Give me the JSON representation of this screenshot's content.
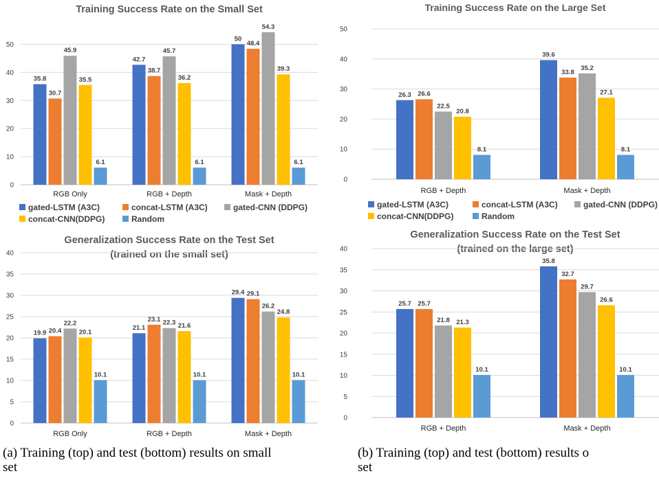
{
  "colors": {
    "gated-LSTM (A3C)": "#4472C4",
    "concat-LSTM (A3C)": "#ED7D31",
    "gated-CNN (DDPG)": "#A5A5A5",
    "concat-CNN(DDPG)": "#FFC000",
    "Random": "#5B9BD5"
  },
  "legend": {
    "items": [
      "gated-LSTM (A3C)",
      "concat-LSTM (A3C)",
      "gated-CNN (DDPG)",
      "concat-CNN(DDPG)",
      "Random"
    ]
  },
  "chart_data": [
    {
      "id": "small-train",
      "type": "bar",
      "title": [
        "Training Success Rate on the Small Set"
      ],
      "categories": [
        "RGB Only",
        "RGB + Depth",
        "Mask + Depth"
      ],
      "series": [
        {
          "name": "gated-LSTM (A3C)",
          "values": [
            35.8,
            42.7,
            50
          ]
        },
        {
          "name": "concat-LSTM (A3C)",
          "values": [
            30.7,
            38.7,
            48.4
          ]
        },
        {
          "name": "gated-CNN (DDPG)",
          "values": [
            45.9,
            45.7,
            54.3
          ]
        },
        {
          "name": "concat-CNN(DDPG)",
          "values": [
            35.5,
            36.2,
            39.3
          ]
        },
        {
          "name": "Random",
          "values": [
            6.1,
            6.1,
            6.1
          ]
        }
      ],
      "ylim": [
        0,
        55
      ],
      "yticks": [
        0,
        10,
        20,
        30,
        40,
        50
      ],
      "grid": true
    },
    {
      "id": "large-train",
      "type": "bar",
      "title": [
        "Training Success Rate on the Large Set"
      ],
      "categories": [
        "RGB + Depth",
        "Mask + Depth"
      ],
      "series": [
        {
          "name": "gated-LSTM (A3C)",
          "values": [
            26.3,
            39.6
          ]
        },
        {
          "name": "concat-LSTM (A3C)",
          "values": [
            26.6,
            33.8
          ]
        },
        {
          "name": "gated-CNN (DDPG)",
          "values": [
            22.5,
            35.2
          ]
        },
        {
          "name": "concat-CNN(DDPG)",
          "values": [
            20.8,
            27.1
          ]
        },
        {
          "name": "Random",
          "values": [
            8.1,
            8.1
          ]
        }
      ],
      "ylim": [
        0,
        50
      ],
      "yticks": [
        0,
        10,
        20,
        30,
        40,
        50
      ],
      "grid": true
    },
    {
      "id": "small-test",
      "type": "bar",
      "title": [
        "Generalization Success Rate on the Test Set",
        "(trained on the small set)"
      ],
      "categories": [
        "RGB Only",
        "RGB + Depth",
        "Mask + Depth"
      ],
      "series": [
        {
          "name": "gated-LSTM (A3C)",
          "values": [
            19.9,
            21.1,
            29.4
          ]
        },
        {
          "name": "concat-LSTM (A3C)",
          "values": [
            20.4,
            23.1,
            29.1
          ]
        },
        {
          "name": "gated-CNN (DDPG)",
          "values": [
            22.2,
            22.3,
            26.2
          ]
        },
        {
          "name": "concat-CNN(DDPG)",
          "values": [
            20.1,
            21.6,
            24.8
          ]
        },
        {
          "name": "Random",
          "values": [
            10.1,
            10.1,
            10.1
          ]
        }
      ],
      "ylim": [
        0,
        40
      ],
      "yticks": [
        0,
        5,
        10,
        15,
        20,
        25,
        30,
        35,
        40
      ],
      "grid": true
    },
    {
      "id": "large-test",
      "type": "bar",
      "title": [
        "Generalization Success Rate on the Test Set",
        "(trained on the large set)"
      ],
      "categories": [
        "RGB + Depth",
        "Mask + Depth"
      ],
      "series": [
        {
          "name": "gated-LSTM (A3C)",
          "values": [
            25.7,
            35.8
          ]
        },
        {
          "name": "concat-LSTM (A3C)",
          "values": [
            25.7,
            32.7
          ]
        },
        {
          "name": "gated-CNN (DDPG)",
          "values": [
            21.8,
            29.7
          ]
        },
        {
          "name": "concat-CNN(DDPG)",
          "values": [
            21.3,
            26.6
          ]
        },
        {
          "name": "Random",
          "values": [
            10.1,
            10.1
          ]
        }
      ],
      "ylim": [
        0,
        40
      ],
      "yticks": [
        0,
        5,
        10,
        15,
        20,
        25,
        30,
        35,
        40
      ],
      "grid": true
    }
  ],
  "captions": {
    "a": "(a) Training (top) and test (bottom) results on small\nset",
    "b": "(b) Training (top) and test (bottom) results o\nset"
  }
}
